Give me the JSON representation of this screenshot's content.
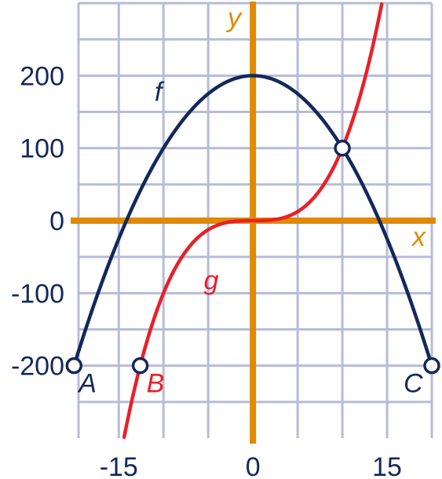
{
  "chart_data": {
    "type": "line",
    "xlabel": "x",
    "ylabel": "y",
    "xlim": [
      -19.5,
      20
    ],
    "ylim": [
      -300,
      300
    ],
    "grid": true,
    "x_ticks": [
      {
        "value": -15,
        "label": "-15"
      },
      {
        "value": 0,
        "label": "0"
      },
      {
        "value": 15,
        "label": "15"
      }
    ],
    "y_ticks": [
      {
        "value": 200,
        "label": "200"
      },
      {
        "value": 100,
        "label": "100"
      },
      {
        "value": 0,
        "label": "0"
      },
      {
        "value": -100,
        "label": "-100"
      },
      {
        "value": -200,
        "label": "-200"
      }
    ],
    "colors": {
      "f": "#14285a",
      "g": "#e8202a",
      "axis": "#e08a00",
      "grid": "#b6bcd8"
    },
    "series": [
      {
        "name": "f",
        "formula": "200 - x^2",
        "x_range": [
          -20,
          20
        ],
        "label_at": [
          -11,
          165
        ],
        "color": "#14285a"
      },
      {
        "name": "g",
        "formula": "x^3 / 10",
        "x_range": [
          -14.4,
          14.4
        ],
        "label_at": [
          -5.5,
          -95
        ],
        "color": "#e8202a"
      }
    ],
    "points": [
      {
        "name": "A",
        "x": -20,
        "y": -200,
        "color": "#14285a"
      },
      {
        "name": "B",
        "x": -12.6,
        "y": -200,
        "color": "#e8202a"
      },
      {
        "name": "C",
        "x": 20,
        "y": -200,
        "color": "#14285a"
      },
      {
        "name": "",
        "x": 10,
        "y": 100,
        "color": "#14285a"
      }
    ]
  }
}
